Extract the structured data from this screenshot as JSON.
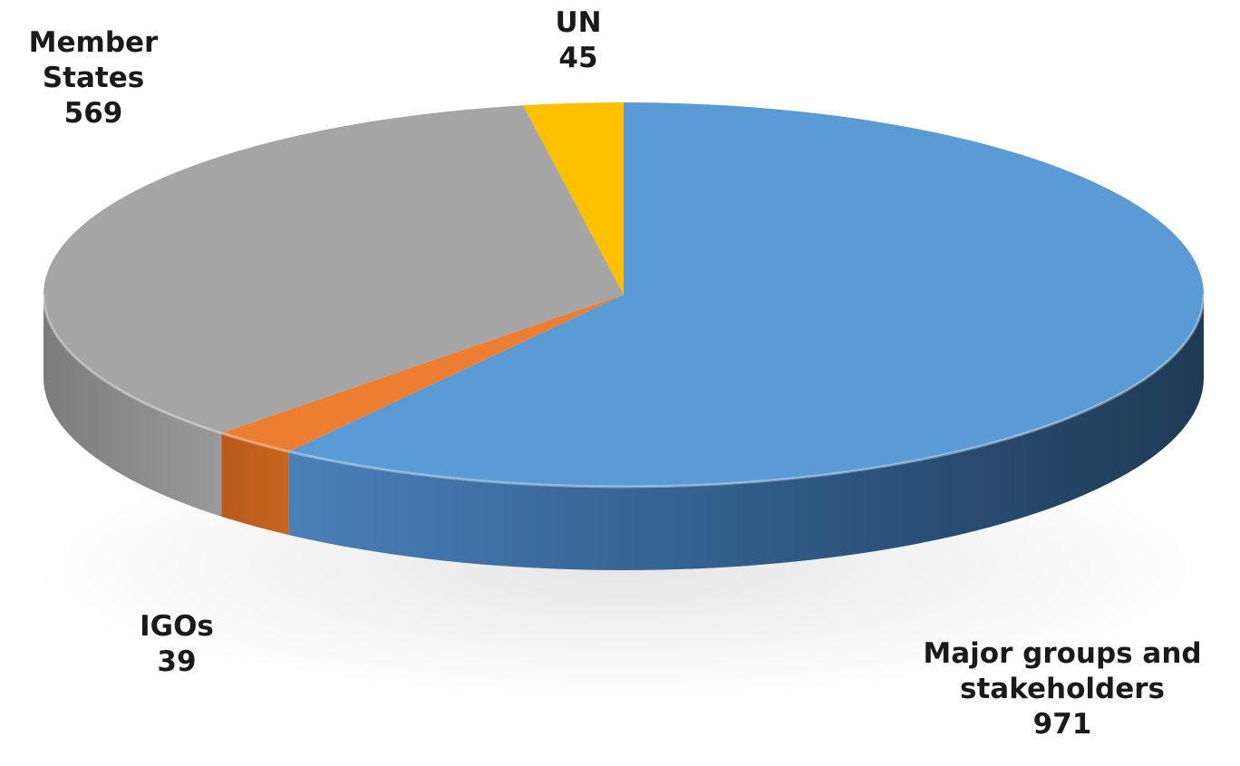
{
  "chart_data": {
    "type": "pie",
    "style": "3d",
    "title": "",
    "slices": [
      {
        "name": "Major groups and stakeholders",
        "value": 971,
        "color": "#5b9bd5"
      },
      {
        "name": "IGOs",
        "value": 39,
        "color": "#ed7d31"
      },
      {
        "name": "Member States",
        "value": 569,
        "color": "#a5a5a5"
      },
      {
        "name": "UN",
        "value": 45,
        "color": "#ffc000"
      }
    ],
    "labels": {
      "mgs": {
        "line1": "Major groups and",
        "line2": "stakeholders",
        "value": "971"
      },
      "igo": {
        "line1": "IGOs",
        "value": "39"
      },
      "ms": {
        "line1": "Member",
        "line2": "States",
        "value": "569"
      },
      "un": {
        "line1": "UN",
        "value": "45"
      }
    }
  }
}
